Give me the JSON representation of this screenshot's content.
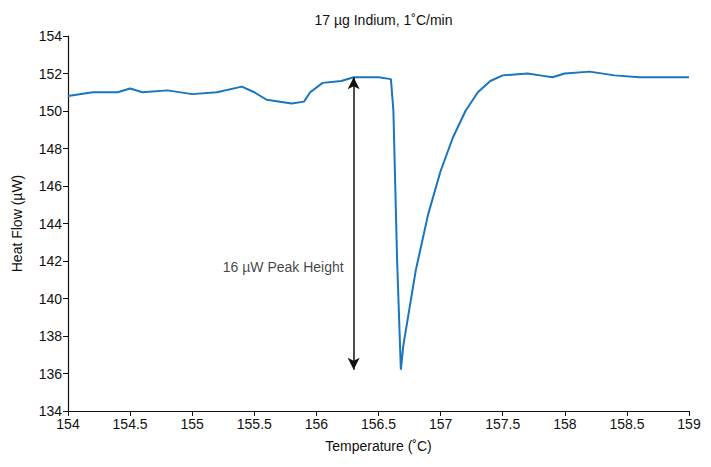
{
  "chart_data": {
    "type": "line",
    "title": "17 µg Indium, 1˚C/min",
    "x_label": "Temperature (˚C)",
    "y_label": "Heat Flow (µW)",
    "x": [
      154,
      154.2,
      154.4,
      154.5,
      154.6,
      154.8,
      155,
      155.2,
      155.4,
      155.5,
      155.6,
      155.8,
      155.9,
      155.95,
      156.05,
      156.2,
      156.3,
      156.5,
      156.6,
      156.62,
      156.65,
      156.68,
      156.7,
      156.8,
      156.9,
      157,
      157.1,
      157.2,
      157.3,
      157.4,
      157.5,
      157.7,
      157.8,
      157.9,
      158,
      158.2,
      158.4,
      158.6,
      159
    ],
    "values": [
      150.8,
      151.0,
      151.0,
      151.2,
      151.0,
      151.1,
      150.9,
      151.0,
      151.3,
      151.0,
      150.6,
      150.4,
      150.5,
      151.0,
      151.5,
      151.6,
      151.8,
      151.8,
      151.7,
      150.0,
      142.0,
      136.2,
      137.5,
      141.5,
      144.5,
      146.8,
      148.6,
      150.0,
      151.0,
      151.6,
      151.9,
      152.0,
      151.9,
      151.8,
      152.0,
      152.1,
      151.9,
      151.8,
      151.8
    ],
    "color": "#1b75bb",
    "xlim": [
      154,
      159
    ],
    "xticks": [
      154,
      154.5,
      155,
      155.5,
      156,
      156.5,
      157,
      157.5,
      158,
      158.5,
      159
    ],
    "ylim": [
      134,
      154
    ],
    "yticks": [
      134,
      136,
      138,
      140,
      142,
      144,
      146,
      148,
      150,
      152,
      154
    ],
    "grid": false,
    "annotations": [
      {
        "text": "16 µW Peak Height",
        "x": 156.3,
        "y": [
          136.2,
          151.8
        ]
      }
    ]
  }
}
